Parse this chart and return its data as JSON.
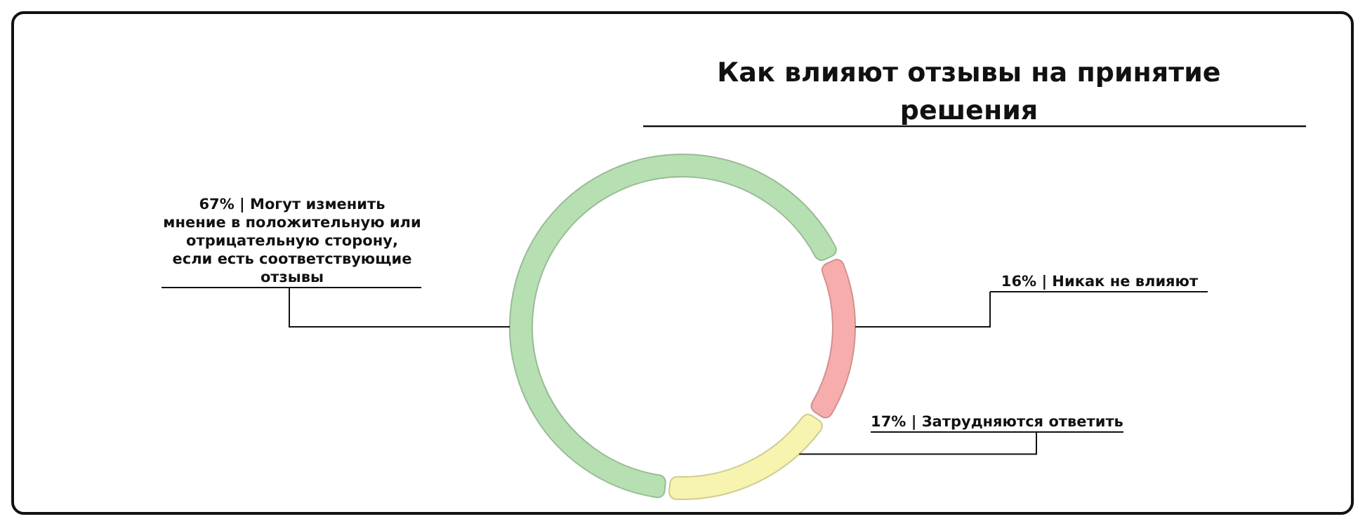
{
  "chart_data": {
    "type": "donut",
    "title": "Как влияют отзывы на принятие решения",
    "categories": [
      "67% | Могут изменить мнение в положительную или отрицательную сторону, если есть соответствующие отзывы",
      "16% | Никак не влияют",
      "17% | Затрудняются ответить"
    ],
    "values": [
      67,
      16,
      17
    ],
    "colors": [
      "#b7e0b2",
      "#f7adab",
      "#f6f4ae"
    ]
  }
}
